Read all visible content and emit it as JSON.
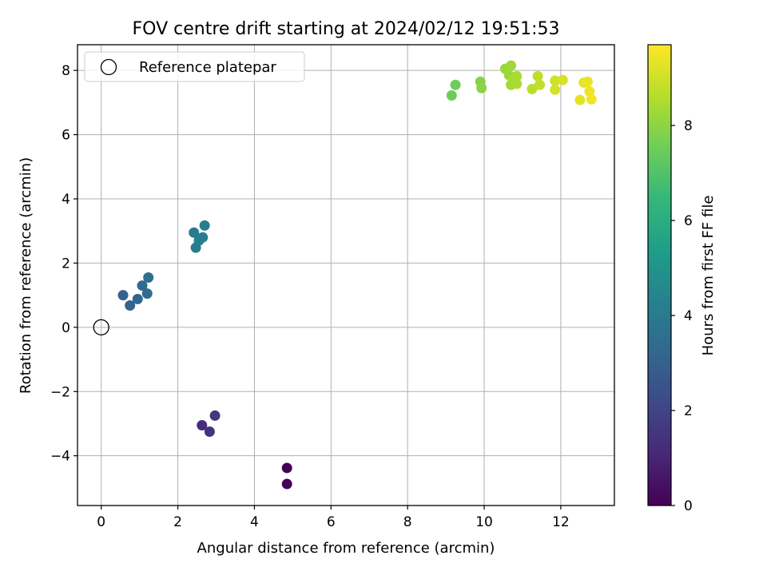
{
  "chart_data": {
    "type": "scatter",
    "title": "FOV centre drift starting at 2024/02/12 19:51:53",
    "xlabel": "Angular distance from reference (arcmin)",
    "ylabel": "Rotation from reference (arcmin)",
    "xlim": [
      -0.62,
      13.4
    ],
    "ylim": [
      -5.55,
      8.8
    ],
    "xticks": [
      0,
      2,
      4,
      6,
      8,
      10,
      12
    ],
    "yticks": [
      -4,
      -2,
      0,
      2,
      4,
      6,
      8
    ],
    "xtick_labels": [
      "0",
      "2",
      "4",
      "6",
      "8",
      "10",
      "12"
    ],
    "ytick_labels": [
      "−4",
      "−2",
      "0",
      "2",
      "4",
      "6",
      "8"
    ],
    "grid": true,
    "legend": {
      "placement": "top-left",
      "entries": [
        "Reference platepar"
      ]
    },
    "reference_point": {
      "x": 0,
      "y": 0,
      "label": "Reference platepar",
      "marker": "open-circle"
    },
    "colorbar": {
      "label": "Hours from first FF file",
      "range": [
        0,
        9.7
      ],
      "ticks": [
        0,
        2,
        4,
        6,
        8
      ],
      "tick_labels": [
        "0",
        "2",
        "4",
        "6",
        "8"
      ],
      "colormap": "viridis",
      "colors": [
        "#440154",
        "#482878",
        "#3e4989",
        "#31688e",
        "#26828e",
        "#1f9e89",
        "#35b779",
        "#6ece58",
        "#b5de2b",
        "#fde725"
      ]
    },
    "points": [
      {
        "x": 4.85,
        "y": -4.38,
        "c": 0.0
      },
      {
        "x": 4.85,
        "y": -4.88,
        "c": 0.08
      },
      {
        "x": 2.63,
        "y": -3.05,
        "c": 1.25
      },
      {
        "x": 2.83,
        "y": -3.25,
        "c": 1.4
      },
      {
        "x": 2.97,
        "y": -2.75,
        "c": 1.55
      },
      {
        "x": 0.57,
        "y": 1.0,
        "c": 3.0
      },
      {
        "x": 0.75,
        "y": 0.68,
        "c": 3.1
      },
      {
        "x": 0.95,
        "y": 0.88,
        "c": 3.2
      },
      {
        "x": 1.07,
        "y": 1.3,
        "c": 3.3
      },
      {
        "x": 1.2,
        "y": 1.05,
        "c": 3.4
      },
      {
        "x": 1.23,
        "y": 1.55,
        "c": 3.5
      },
      {
        "x": 2.42,
        "y": 2.95,
        "c": 4.0
      },
      {
        "x": 2.47,
        "y": 2.48,
        "c": 4.05
      },
      {
        "x": 2.55,
        "y": 2.7,
        "c": 4.1
      },
      {
        "x": 2.65,
        "y": 2.8,
        "c": 4.15
      },
      {
        "x": 2.7,
        "y": 3.17,
        "c": 4.2
      },
      {
        "x": 9.15,
        "y": 7.22,
        "c": 7.5
      },
      {
        "x": 9.25,
        "y": 7.55,
        "c": 7.55
      },
      {
        "x": 9.9,
        "y": 7.65,
        "c": 7.9
      },
      {
        "x": 9.93,
        "y": 7.45,
        "c": 7.95
      },
      {
        "x": 10.55,
        "y": 8.05,
        "c": 8.2
      },
      {
        "x": 10.65,
        "y": 7.85,
        "c": 8.25
      },
      {
        "x": 10.7,
        "y": 8.15,
        "c": 8.3
      },
      {
        "x": 10.7,
        "y": 7.55,
        "c": 8.35
      },
      {
        "x": 10.75,
        "y": 7.7,
        "c": 8.4
      },
      {
        "x": 10.85,
        "y": 7.82,
        "c": 8.45
      },
      {
        "x": 10.85,
        "y": 7.58,
        "c": 8.5
      },
      {
        "x": 11.25,
        "y": 7.42,
        "c": 8.7
      },
      {
        "x": 11.4,
        "y": 7.82,
        "c": 8.75
      },
      {
        "x": 11.45,
        "y": 7.55,
        "c": 8.8
      },
      {
        "x": 11.85,
        "y": 7.68,
        "c": 9.0
      },
      {
        "x": 11.85,
        "y": 7.4,
        "c": 9.05
      },
      {
        "x": 12.05,
        "y": 7.7,
        "c": 9.1
      },
      {
        "x": 12.5,
        "y": 7.08,
        "c": 9.3
      },
      {
        "x": 12.6,
        "y": 7.62,
        "c": 9.35
      },
      {
        "x": 12.7,
        "y": 7.65,
        "c": 9.4
      },
      {
        "x": 12.75,
        "y": 7.35,
        "c": 9.45
      },
      {
        "x": 12.8,
        "y": 7.1,
        "c": 9.5
      }
    ]
  }
}
